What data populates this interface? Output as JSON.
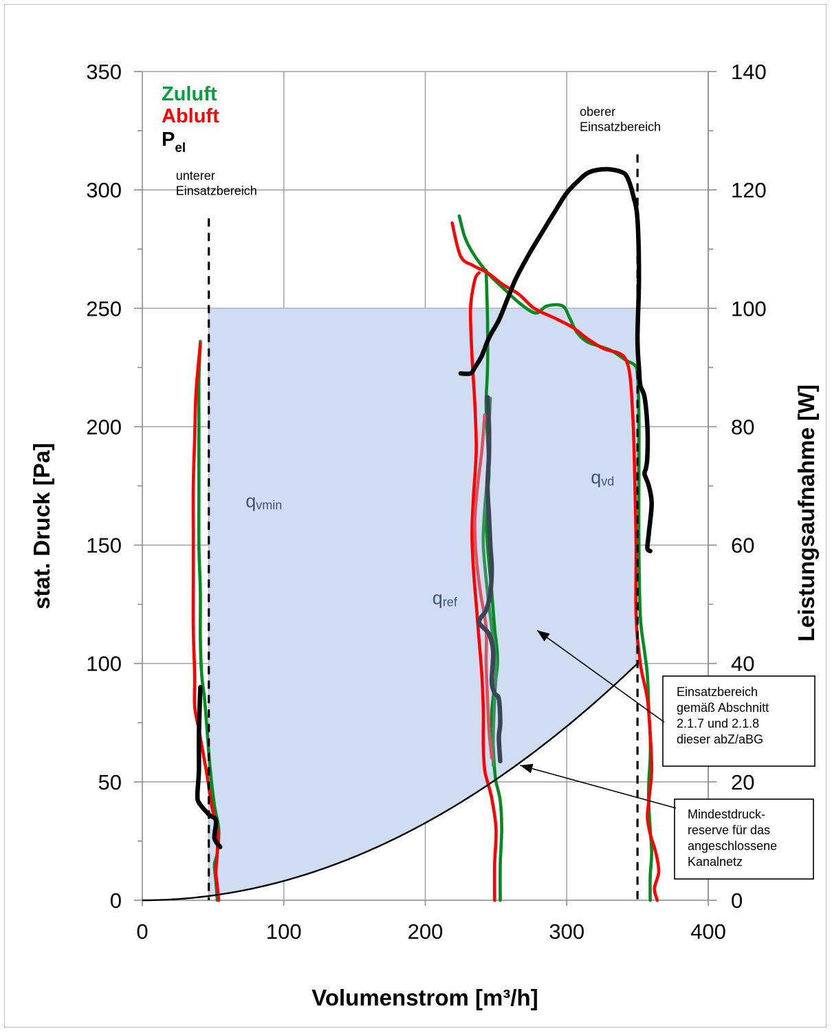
{
  "chart_data": {
    "type": "line",
    "xlabel": "Volumenstrom [m³/h]",
    "ylabel": "stat. Druck [Pa]",
    "y2label": "Leistungsaufnahme [W]",
    "xlim": [
      0,
      400
    ],
    "ylim": [
      0,
      350
    ],
    "y2lim": [
      0,
      140
    ],
    "grid": true,
    "x_ticks": [
      0,
      100,
      200,
      300,
      400
    ],
    "y_ticks": [
      0,
      50,
      100,
      150,
      200,
      250,
      300,
      350
    ],
    "y2_ticks": [
      0,
      20,
      40,
      60,
      80,
      100,
      120,
      140
    ],
    "legend": {
      "placement": "top-left",
      "items": [
        {
          "label": "Zuluft",
          "color": "#00a040"
        },
        {
          "label": "Abluft",
          "color": "#ff0000"
        },
        {
          "label": "P",
          "sub": "el",
          "color": "#000000"
        }
      ]
    },
    "colors": {
      "zuluft": "#008c1e",
      "abluft": "#ff0000",
      "pel": "#000000",
      "zuluft_ref": "#3b8f5a",
      "abluft_ref": "#d9545f",
      "pel_ref": "#3a4656",
      "region_fill": "#cfdcf1",
      "region_edge": "#9aa8bf"
    },
    "region": {
      "label": "Einsatzbereich",
      "x_min": 47,
      "x_max": 350,
      "y_max": 250,
      "lower_bound": "reserve curve"
    },
    "reserve_curve": {
      "name": "Mindestdruckreserve",
      "formula": "p = 100 * (q/350)^2",
      "points": [
        [
          0,
          0
        ],
        [
          50,
          2
        ],
        [
          100,
          8.2
        ],
        [
          150,
          18.4
        ],
        [
          200,
          32.7
        ],
        [
          250,
          51
        ],
        [
          300,
          73.5
        ],
        [
          350,
          100
        ]
      ]
    },
    "vlines": [
      {
        "x": 47,
        "y_top": 288,
        "label_lines": [
          "unterer",
          "Einsatzbereich"
        ]
      },
      {
        "x": 350,
        "y_top": 315,
        "label_lines": [
          "oberer",
          "Einsatzbereich"
        ]
      }
    ],
    "point_labels": [
      {
        "base": "q",
        "sub": "vmin",
        "x": 73,
        "y": 166
      },
      {
        "base": "q",
        "sub": "ref",
        "x": 205,
        "y": 125
      },
      {
        "base": "q",
        "sub": "vd",
        "x": 317,
        "y": 176
      }
    ],
    "annotations": [
      {
        "lines": [
          "Einsatzbereich",
          "gemäß Abschnitt",
          "2.1.7 und 2.1.8",
          "dieser abZ/aBG"
        ],
        "arrow_to": [
          279,
          114
        ]
      },
      {
        "lines": [
          "Mindestdruck-",
          "reserve für das",
          "angeschlossene",
          "Kanalnetz"
        ],
        "arrow_to": [
          267,
          57
        ]
      }
    ],
    "series": [
      {
        "key": "zuluft_min",
        "group": "zuluft",
        "axis": "left",
        "points": [
          [
            53,
            0
          ],
          [
            52,
            8
          ],
          [
            51,
            15
          ],
          [
            53,
            20
          ],
          [
            54,
            30
          ],
          [
            51,
            40
          ],
          [
            48,
            55
          ],
          [
            46,
            70
          ],
          [
            44,
            85
          ],
          [
            42,
            95
          ],
          [
            41,
            110
          ],
          [
            41,
            130
          ],
          [
            40,
            150
          ],
          [
            40,
            175
          ],
          [
            40,
            200
          ],
          [
            40,
            220
          ],
          [
            41,
            236
          ]
        ]
      },
      {
        "key": "abluft_min",
        "group": "abluft",
        "axis": "left",
        "points": [
          [
            54,
            0
          ],
          [
            53,
            6
          ],
          [
            52,
            12
          ],
          [
            53,
            20
          ],
          [
            53,
            30
          ],
          [
            49,
            40
          ],
          [
            46,
            52
          ],
          [
            43,
            62
          ],
          [
            40,
            72
          ],
          [
            37,
            82
          ],
          [
            37,
            95
          ],
          [
            36,
            115
          ],
          [
            36,
            135
          ],
          [
            36,
            155
          ],
          [
            36,
            175
          ],
          [
            37,
            195
          ],
          [
            38,
            215
          ],
          [
            41,
            235
          ]
        ]
      },
      {
        "key": "pel_min",
        "group": "pel",
        "axis": "right",
        "points": [
          [
            55,
            9
          ],
          [
            51,
            10.5
          ],
          [
            52,
            13.5
          ],
          [
            47,
            14.5
          ],
          [
            40,
            16.5
          ],
          [
            39,
            18
          ],
          [
            40,
            22
          ],
          [
            40,
            28
          ],
          [
            41,
            36
          ]
        ]
      },
      {
        "key": "zuluft_ref",
        "group": "zuluft",
        "axis": "left",
        "points": [
          [
            253,
            0
          ],
          [
            253,
            15
          ],
          [
            254,
            30
          ],
          [
            253,
            42
          ],
          [
            250,
            50
          ],
          [
            249,
            55
          ],
          [
            248,
            65
          ],
          [
            247,
            80
          ],
          [
            251,
            100
          ],
          [
            249,
            115
          ],
          [
            247,
            130
          ],
          [
            244,
            150
          ],
          [
            243,
            165
          ],
          [
            245,
            180
          ],
          [
            244,
            195
          ],
          [
            243,
            210
          ],
          [
            244,
            225
          ],
          [
            244,
            245
          ],
          [
            243,
            266
          ]
        ]
      },
      {
        "key": "abluft_ref",
        "group": "abluft",
        "axis": "left",
        "points": [
          [
            249,
            0
          ],
          [
            249,
            15
          ],
          [
            250,
            30
          ],
          [
            247,
            43
          ],
          [
            244,
            50
          ],
          [
            242,
            55
          ],
          [
            241,
            65
          ],
          [
            241,
            80
          ],
          [
            240,
            95
          ],
          [
            238,
            110
          ],
          [
            236,
            125
          ],
          [
            234,
            140
          ],
          [
            233,
            155
          ],
          [
            234,
            170
          ],
          [
            236,
            190
          ],
          [
            235,
            210
          ],
          [
            233,
            230
          ],
          [
            232,
            250
          ],
          [
            235,
            262
          ],
          [
            238,
            265
          ]
        ]
      },
      {
        "key": "zuluft_ref_ref",
        "group": "zuluft_ref",
        "axis": "left",
        "points": [
          [
            248,
            57
          ],
          [
            248,
            70
          ],
          [
            249,
            85
          ],
          [
            250,
            100
          ],
          [
            247,
            115
          ],
          [
            244,
            130
          ],
          [
            241,
            150
          ],
          [
            242,
            165
          ],
          [
            244,
            180
          ],
          [
            245,
            200
          ],
          [
            246,
            212
          ]
        ]
      },
      {
        "key": "abluft_ref_ref",
        "group": "abluft_ref",
        "axis": "left",
        "points": [
          [
            247,
            60
          ],
          [
            245,
            72
          ],
          [
            244,
            85
          ],
          [
            243,
            100
          ],
          [
            243,
            115
          ],
          [
            239,
            130
          ],
          [
            236,
            145
          ],
          [
            235,
            160
          ],
          [
            237,
            175
          ],
          [
            240,
            190
          ],
          [
            242,
            205
          ]
        ]
      },
      {
        "key": "pel_ref",
        "group": "pel_ref",
        "axis": "right",
        "points": [
          [
            253,
            23.5
          ],
          [
            252,
            27.5
          ],
          [
            253,
            30
          ],
          [
            252,
            34
          ],
          [
            249,
            35
          ],
          [
            247,
            37
          ],
          [
            248,
            42
          ],
          [
            245,
            45
          ],
          [
            238,
            47
          ],
          [
            243,
            49
          ],
          [
            246,
            52
          ],
          [
            247,
            56
          ],
          [
            246,
            60
          ],
          [
            245,
            65
          ],
          [
            244,
            70
          ],
          [
            245,
            75
          ],
          [
            245,
            80
          ],
          [
            244,
            85
          ]
        ]
      },
      {
        "key": "zuluft_vd",
        "group": "zuluft",
        "axis": "left",
        "points": [
          [
            224,
            289
          ],
          [
            228,
            280
          ],
          [
            234,
            273
          ],
          [
            244,
            265
          ],
          [
            256,
            258
          ],
          [
            267,
            252
          ],
          [
            278,
            248
          ],
          [
            286,
            251
          ],
          [
            297,
            251
          ],
          [
            302,
            246
          ],
          [
            307,
            240
          ],
          [
            314,
            236
          ],
          [
            323,
            234
          ],
          [
            332,
            232
          ],
          [
            342,
            228
          ],
          [
            348,
            226
          ],
          [
            350,
            222
          ],
          [
            351,
            205
          ],
          [
            351,
            180
          ],
          [
            351,
            150
          ],
          [
            352,
            120
          ],
          [
            355,
            105
          ],
          [
            357,
            95
          ],
          [
            358,
            80
          ],
          [
            359,
            70
          ],
          [
            359,
            60
          ],
          [
            358,
            50
          ],
          [
            358,
            40
          ],
          [
            359,
            30
          ],
          [
            360,
            20
          ],
          [
            359,
            10
          ],
          [
            359,
            0
          ]
        ]
      },
      {
        "key": "abluft_vd",
        "group": "abluft",
        "axis": "left",
        "points": [
          [
            219,
            286
          ],
          [
            225,
            272
          ],
          [
            234,
            268
          ],
          [
            244,
            265
          ],
          [
            255,
            260
          ],
          [
            266,
            256
          ],
          [
            277,
            250
          ],
          [
            291,
            246
          ],
          [
            304,
            242
          ],
          [
            315,
            237
          ],
          [
            326,
            233
          ],
          [
            337,
            231
          ],
          [
            342,
            228
          ],
          [
            345,
            220
          ],
          [
            347,
            200
          ],
          [
            348,
            180
          ],
          [
            349,
            150
          ],
          [
            349,
            120
          ],
          [
            352,
            100
          ],
          [
            357,
            85
          ],
          [
            359,
            70
          ],
          [
            360,
            55
          ],
          [
            358,
            42
          ],
          [
            357,
            35
          ],
          [
            359,
            28
          ],
          [
            363,
            20
          ],
          [
            365,
            12
          ],
          [
            362,
            5
          ],
          [
            364,
            0
          ]
        ]
      },
      {
        "key": "pel_vd",
        "group": "pel",
        "axis": "right",
        "points": [
          [
            225,
            89
          ],
          [
            232,
            89
          ],
          [
            235,
            90
          ],
          [
            240,
            92
          ],
          [
            245,
            95
          ],
          [
            252,
            98
          ],
          [
            258,
            101.5
          ],
          [
            264,
            105
          ],
          [
            273,
            109
          ],
          [
            283,
            113
          ],
          [
            292,
            116.5
          ],
          [
            300,
            119.5
          ],
          [
            308,
            121.5
          ],
          [
            316,
            123
          ],
          [
            328,
            123.5
          ],
          [
            339,
            123
          ],
          [
            343,
            122
          ],
          [
            347,
            119
          ],
          [
            350,
            115
          ],
          [
            351,
            105
          ],
          [
            350,
            95
          ],
          [
            351,
            90
          ],
          [
            352,
            87
          ],
          [
            355,
            85
          ],
          [
            357,
            80
          ],
          [
            357,
            75
          ],
          [
            356,
            73
          ],
          [
            355,
            72
          ],
          [
            358,
            70
          ],
          [
            360,
            67
          ],
          [
            358,
            62
          ],
          [
            357,
            59.5
          ],
          [
            359,
            59
          ]
        ]
      }
    ]
  }
}
